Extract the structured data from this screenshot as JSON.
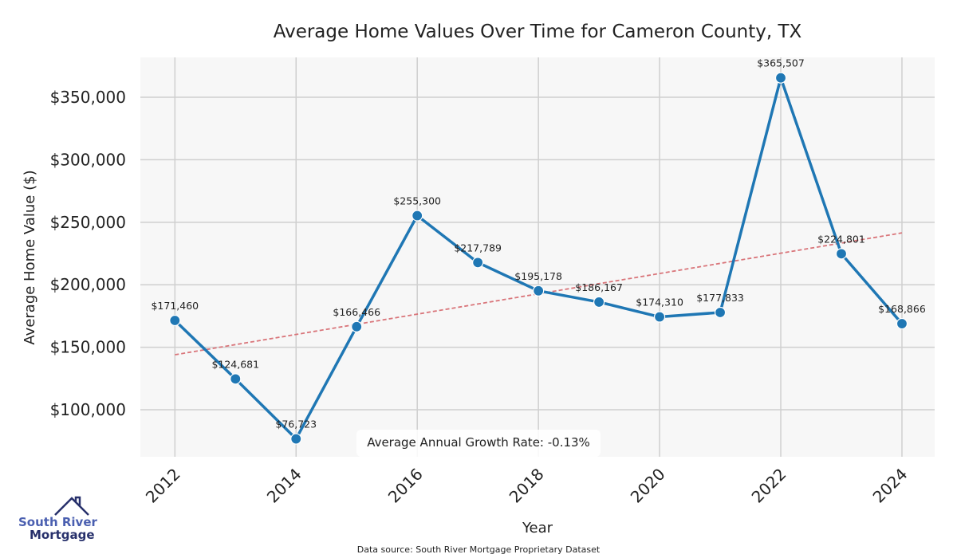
{
  "chart_data": {
    "type": "line",
    "title": "Average Home Values Over Time for Cameron County, TX",
    "xlabel": "Year",
    "ylabel": "Average Home Value ($)",
    "x": [
      2012,
      2013,
      2014,
      2015,
      2016,
      2017,
      2018,
      2019,
      2020,
      2021,
      2022,
      2023,
      2024
    ],
    "values": [
      171460,
      124681,
      76723,
      166466,
      255300,
      217789,
      195178,
      186167,
      174310,
      177833,
      365507,
      224801,
      168866
    ],
    "data_labels": [
      "$171,460",
      "$124,681",
      "$76,723",
      "$166,466",
      "$255,300",
      "$217,789",
      "$195,178",
      "$186,167",
      "$174,310",
      "$177,833",
      "$365,507",
      "$224,801",
      "$168,866"
    ],
    "xticks": [
      2012,
      2014,
      2016,
      2018,
      2020,
      2022,
      2024
    ],
    "xtick_labels": [
      "2012",
      "2014",
      "2016",
      "2018",
      "2020",
      "2022",
      "2024"
    ],
    "yticks": [
      100000,
      150000,
      200000,
      250000,
      300000,
      350000
    ],
    "ytick_labels": [
      "$100,000",
      "$150,000",
      "$200,000",
      "$250,000",
      "$300,000",
      "$350,000"
    ],
    "xlim": [
      2011.43,
      2024.54
    ],
    "ylim": [
      62400,
      381900
    ],
    "trendline": {
      "x": [
        2012,
        2024
      ],
      "y": [
        144000,
        241500
      ],
      "style": "dashed",
      "color": "#d9757a"
    },
    "grid": true,
    "line_color": "#1f77b4",
    "annotation": "Average Annual Growth Rate: -0.13%",
    "source": "Data source: South River Mortgage Proprietary Dataset"
  },
  "logo": {
    "line1": "South River",
    "line2": "Mortgage"
  }
}
